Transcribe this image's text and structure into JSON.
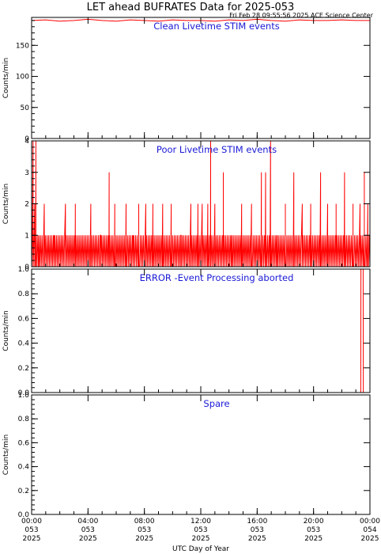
{
  "figure": {
    "title": "LET ahead BUFRATES Data for 2025-053",
    "timestamp": "Fri Feb 28 09:55:56 2025 ACE Science Center",
    "xlabel": "UTC Day of Year",
    "line_color": "#ff0000",
    "title_color": "#1a1ad6"
  },
  "chart_data": [
    {
      "type": "line",
      "title": "Clean Livetime STIM events",
      "ylabel": "Counts/min",
      "xlim": [
        0,
        24
      ],
      "ylim": [
        0,
        195
      ],
      "yticks": [
        "0",
        "50",
        "100",
        "150"
      ],
      "ytick_values": [
        0,
        50,
        100,
        150
      ],
      "series": [
        {
          "values_note": "dense per-minute rate near 188-192 throughout",
          "x": [
            0,
            1,
            2,
            3,
            4,
            5,
            6,
            7,
            8,
            9,
            10,
            11,
            12,
            13,
            14,
            15,
            16,
            17,
            18,
            19,
            20,
            21,
            22,
            23,
            24
          ],
          "y": [
            190,
            191,
            189,
            190,
            192,
            190,
            189,
            191,
            190,
            189,
            191,
            190,
            190,
            189,
            191,
            190,
            192,
            190,
            189,
            191,
            190,
            190,
            191,
            190,
            190
          ]
        }
      ]
    },
    {
      "type": "line",
      "title": "Poor Livetime STIM events",
      "ylabel": "Counts/min",
      "xlim": [
        0,
        24
      ],
      "ylim": [
        0,
        4
      ],
      "yticks": [
        "0",
        "1",
        "2",
        "3",
        "4"
      ],
      "ytick_values": [
        0,
        1,
        2,
        3,
        4
      ],
      "series": [
        {
          "values_note": "integer counts, mostly 0-1 with spikes to 2-4",
          "x": [
            0.1,
            0.22,
            0.3,
            0.5,
            0.9,
            1.6,
            2.4,
            3.1,
            4.2,
            4.9,
            5.5,
            5.9,
            6.7,
            7.2,
            7.6,
            8.1,
            8.6,
            9.3,
            9.9,
            10.6,
            11.3,
            11.8,
            12.1,
            12.5,
            12.7,
            13.0,
            13.6,
            14.2,
            14.9,
            15.6,
            16.3,
            16.6,
            16.95,
            17.4,
            18.0,
            18.6,
            19.2,
            19.8,
            20.5,
            21.0,
            21.6,
            22.2,
            22.8,
            23.3,
            23.6,
            23.85
          ],
          "y": [
            4,
            2,
            4,
            1,
            2,
            1,
            2,
            2,
            2,
            1,
            3,
            2,
            2,
            1,
            2,
            2,
            2,
            2,
            2,
            1,
            2,
            2,
            2,
            2,
            4,
            2,
            3,
            1,
            2,
            2,
            3,
            3,
            4,
            1,
            2,
            3,
            2,
            2,
            3,
            2,
            2,
            3,
            2,
            2,
            3,
            2
          ]
        }
      ]
    },
    {
      "type": "line",
      "title": "ERROR -Event Processing aborted",
      "ylabel": "Counts/min",
      "xlim": [
        0,
        24
      ],
      "ylim": [
        0,
        1
      ],
      "yticks": [
        "0.0",
        "0.2",
        "0.4",
        "0.6",
        "0.8",
        "1.0"
      ],
      "ytick_values": [
        0,
        0.2,
        0.4,
        0.6,
        0.8,
        1.0
      ],
      "series": [
        {
          "x": [
            0,
            23.35,
            23.36,
            23.52,
            23.53,
            24
          ],
          "y": [
            0,
            0,
            1,
            1,
            0,
            0
          ]
        }
      ]
    },
    {
      "type": "line",
      "title": "Spare",
      "ylabel": "Counts/min",
      "xlim": [
        0,
        24
      ],
      "ylim": [
        0,
        1
      ],
      "yticks": [
        "0.0",
        "0.2",
        "0.4",
        "0.6",
        "0.8",
        "1.0"
      ],
      "ytick_values": [
        0,
        0.2,
        0.4,
        0.6,
        0.8,
        1.0
      ],
      "series": [
        {
          "x": [
            0,
            24
          ],
          "y": [
            0,
            0
          ]
        }
      ]
    }
  ],
  "x_axis": {
    "ticks": [
      {
        "value": 0,
        "time": "00:00",
        "doy": "053",
        "year": "2025"
      },
      {
        "value": 4,
        "time": "04:00",
        "doy": "053",
        "year": "2025"
      },
      {
        "value": 8,
        "time": "08:00",
        "doy": "053",
        "year": "2025"
      },
      {
        "value": 12,
        "time": "12:00",
        "doy": "053",
        "year": "2025"
      },
      {
        "value": 16,
        "time": "16:00",
        "doy": "053",
        "year": "2025"
      },
      {
        "value": 20,
        "time": "20:00",
        "doy": "053",
        "year": "2025"
      },
      {
        "value": 24,
        "time": "00:00",
        "doy": "054",
        "year": "2025"
      }
    ]
  }
}
